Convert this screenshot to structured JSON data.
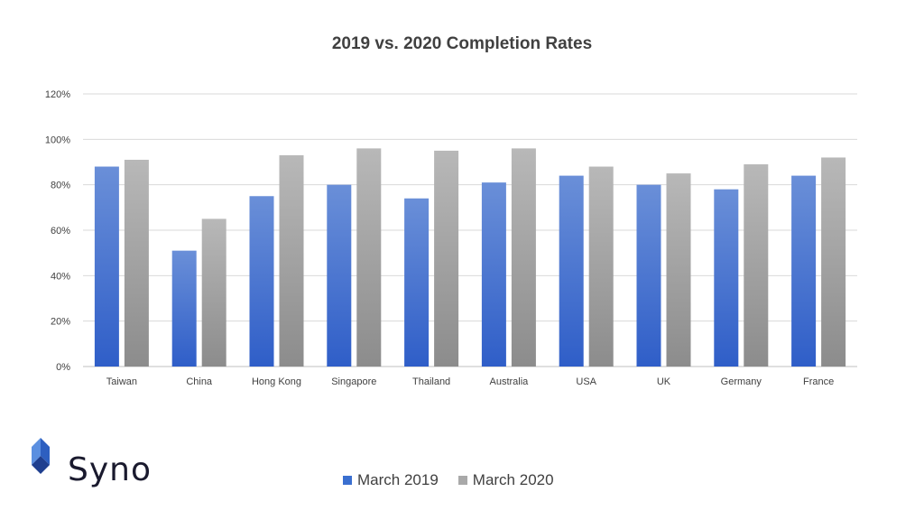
{
  "chart_data": {
    "type": "bar",
    "title": "2019 vs. 2020 Completion Rates",
    "categories": [
      "Taiwan",
      "China",
      "Hong Kong",
      "Singapore",
      "Thailand",
      "Australia",
      "USA",
      "UK",
      "Germany",
      "France"
    ],
    "series": [
      {
        "name": "March 2019",
        "values": [
          88,
          51,
          75,
          80,
          74,
          81,
          84,
          80,
          78,
          84
        ],
        "color": "#3a6fd0"
      },
      {
        "name": "March 2020",
        "values": [
          91,
          65,
          93,
          96,
          95,
          96,
          88,
          85,
          89,
          92
        ],
        "color": "#a9a9a9"
      }
    ],
    "ylim": [
      0,
      120
    ],
    "yticks": [
      "0%",
      "20%",
      "40%",
      "60%",
      "80%",
      "100%",
      "120%"
    ],
    "xlabel": "",
    "ylabel": "",
    "grid": true,
    "legend_position": "bottom"
  },
  "logo": {
    "text": "Syno",
    "colors": [
      "#5b8fe0",
      "#2d5fc0",
      "#1f3f8f"
    ]
  }
}
